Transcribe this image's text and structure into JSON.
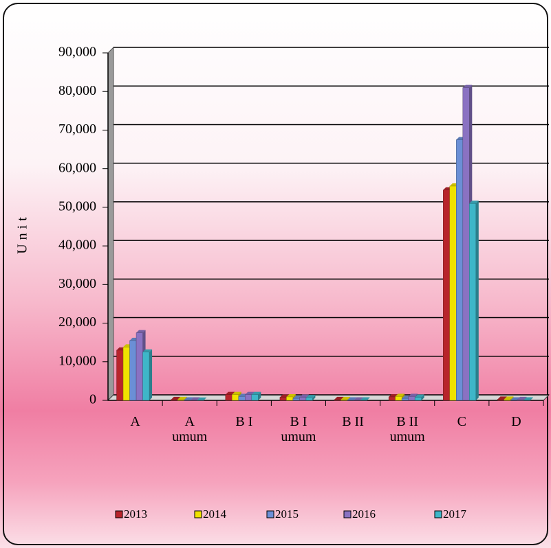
{
  "chart_data": {
    "type": "bar3d",
    "ylabel": "Unit",
    "categories": [
      "A",
      "A umum",
      "B I",
      "B I umum",
      "B II",
      "B II umum",
      "C",
      "D"
    ],
    "series": [
      {
        "name": "2013",
        "color": "#b8242b",
        "values": [
          13000,
          200,
          1500,
          800,
          200,
          900,
          54500,
          300
        ]
      },
      {
        "name": "2014",
        "color": "#f0e200",
        "values": [
          13800,
          200,
          1500,
          900,
          200,
          1000,
          55500,
          300
        ]
      },
      {
        "name": "2015",
        "color": "#6b8fd6",
        "values": [
          15500,
          100,
          1000,
          500,
          100,
          500,
          67500,
          100
        ]
      },
      {
        "name": "2016",
        "color": "#8a72c2",
        "values": [
          17500,
          100,
          1500,
          800,
          100,
          1000,
          81000,
          200
        ]
      },
      {
        "name": "2017",
        "color": "#3eb6c8",
        "values": [
          12500,
          50,
          1500,
          700,
          100,
          800,
          51000,
          100
        ]
      }
    ],
    "ylim": [
      0,
      90000
    ],
    "yticks": [
      0,
      {
        "value": 10000,
        "label": "10,000"
      },
      {
        "value": 20000,
        "label": "20,000"
      },
      {
        "value": 30000,
        "label": "30,000"
      },
      {
        "value": 40000,
        "label": "40,000"
      },
      {
        "value": 50000,
        "label": "50,000"
      },
      {
        "value": 60000,
        "label": "60,000"
      },
      {
        "value": 70000,
        "label": "70,000"
      },
      {
        "value": 80000,
        "label": "80,000"
      },
      {
        "value": 90000,
        "label": "90,000"
      }
    ],
    "grid": true
  }
}
